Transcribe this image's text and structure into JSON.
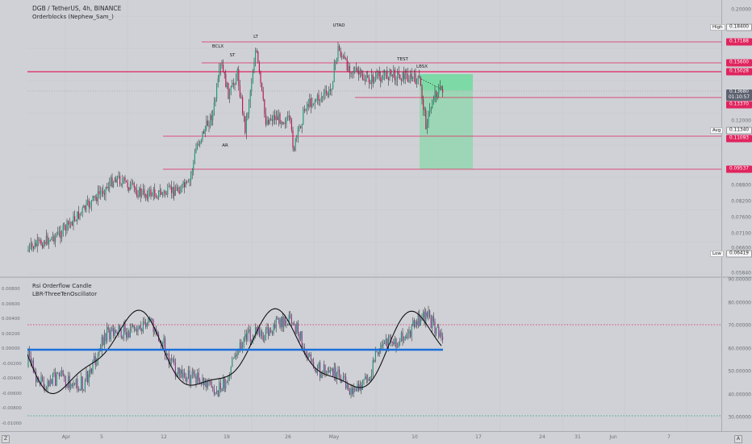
{
  "main": {
    "title": "DGB / TetherUS, 4h, BINANCE",
    "indicator": "Orderblocks (Nephew_Sam_)",
    "price_ticks": [
      "0.20000",
      "0.18400",
      "0.17188",
      "0.15600",
      "0.15028",
      "0.13680",
      "0.13370",
      "0.12000",
      "0.11340",
      "0.11093",
      "0.09537",
      "0.08800",
      "0.08200",
      "0.07600",
      "0.07100",
      "0.06600",
      "0.06419",
      "0.05840"
    ],
    "high_label": "High",
    "high_value": "0.18400",
    "avg_label": "Avg",
    "avg_value": "0.11340",
    "low_label": "Low",
    "low_value": "0.06419",
    "current_price": "0.13680",
    "countdown": "01:10:57",
    "level_tags": [
      "0.17188",
      "0.15600",
      "0.15028",
      "0.13370",
      "0.11093",
      "0.09537"
    ],
    "wyckoff_labels": [
      "BCLX",
      "ST",
      "LT",
      "UTAD",
      "TEST",
      "LBSX",
      "AR"
    ]
  },
  "oscillator": {
    "title": "Rsi Orderflow Candle",
    "subtitle": "LBR-ThreeTenOscillator",
    "left_ticks": [
      "0.00800",
      "0.00600",
      "0.00400",
      "0.00200",
      "0.00000",
      "-0.00200",
      "-0.00400",
      "-0.00600",
      "-0.00800",
      "-0.01000"
    ],
    "right_ticks": [
      "90.00000",
      "80.00000",
      "70.00000",
      "60.00000",
      "50.00000",
      "40.00000",
      "30.00000"
    ]
  },
  "time_axis": {
    "ticks": [
      "Apr",
      "5",
      "12",
      "19",
      "26",
      "May",
      "10",
      "17",
      "24",
      "31",
      "Jun",
      "7"
    ],
    "corner_left": "Z",
    "corner_right": "A"
  },
  "colors": {
    "bull": "#1f9e78",
    "bear": "#c2185b",
    "level": "#e0245e",
    "target_zone": "#86d9a8",
    "zero_line": "#1e6fd9"
  }
}
